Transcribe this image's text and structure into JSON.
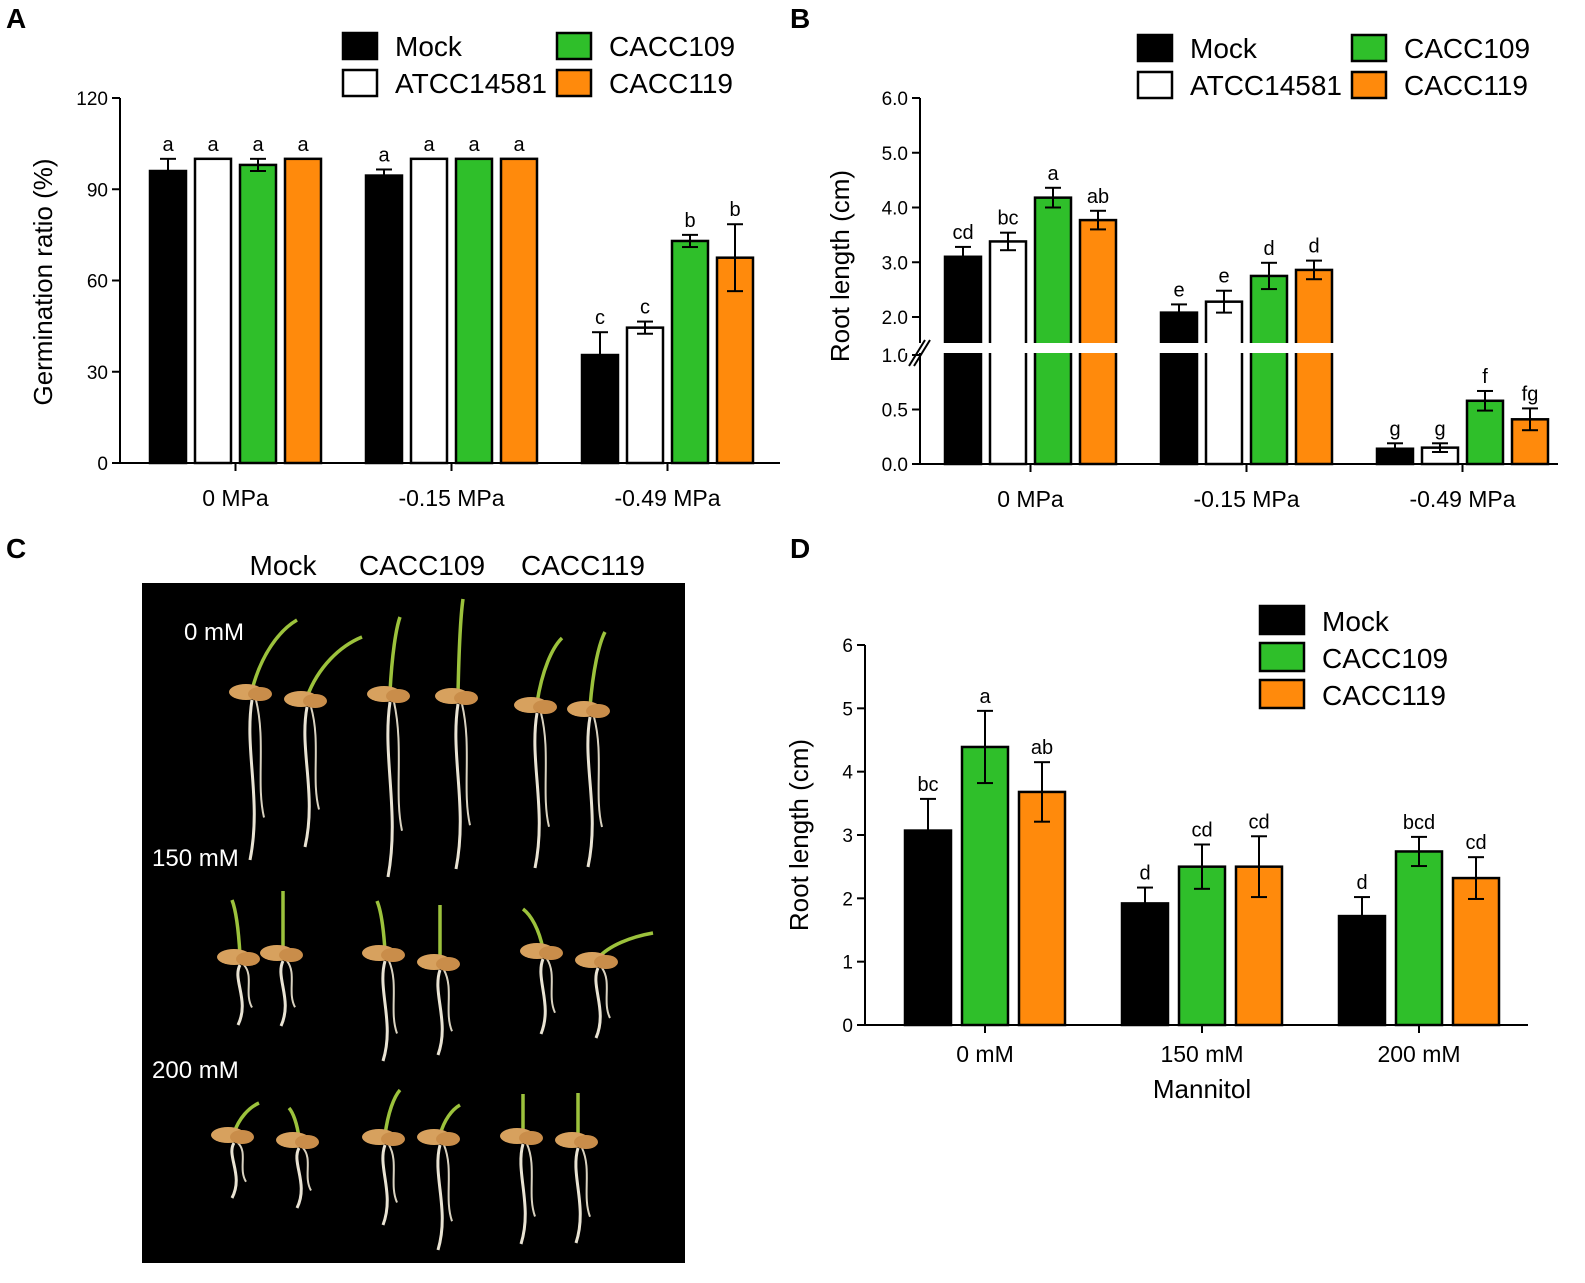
{
  "colors": {
    "mock": "#000000",
    "atcc": "#ffffff",
    "cacc109": "#2fbf2a",
    "cacc119": "#ff8a0c",
    "stroke": "#000000"
  },
  "panels": {
    "a": "A",
    "b": "B",
    "c": "C",
    "d": "D"
  },
  "chart_data": [
    {
      "id": "A",
      "type": "bar",
      "ylabel": "Germination ratio (%)",
      "xlabel": "",
      "ylim": [
        0,
        120
      ],
      "yticks": [
        "0",
        "30",
        "60",
        "90",
        "120"
      ],
      "categories": [
        "0 MPa",
        "-0.15 MPa",
        "-0.49 MPa"
      ],
      "legend": [
        "Mock",
        "ATCC14581",
        "CACC109",
        "CACC119"
      ],
      "series": [
        {
          "name": "Mock",
          "color": "#000000",
          "values": [
            96,
            94.5,
            35.5
          ],
          "err": [
            4,
            2,
            7.5
          ],
          "sig": [
            "a",
            "a",
            "c"
          ]
        },
        {
          "name": "ATCC14581",
          "color": "#ffffff",
          "values": [
            100,
            100,
            44.5
          ],
          "err": [
            0,
            0,
            2
          ],
          "sig": [
            "a",
            "a",
            "c"
          ]
        },
        {
          "name": "CACC109",
          "color": "#2fbf2a",
          "values": [
            98,
            100,
            73
          ],
          "err": [
            2,
            0,
            2
          ],
          "sig": [
            "a",
            "a",
            "b"
          ]
        },
        {
          "name": "CACC119",
          "color": "#ff8a0c",
          "values": [
            100,
            100,
            67.5
          ],
          "err": [
            0,
            0,
            11
          ],
          "sig": [
            "a",
            "a",
            "b"
          ]
        }
      ]
    },
    {
      "id": "B",
      "type": "bar",
      "ylabel": "Root length (cm)",
      "xlabel": "",
      "ylim": [
        0,
        6
      ],
      "axis_break": [
        1.0,
        2.0
      ],
      "yticks": [
        "0.0",
        "0.5",
        "1.0",
        "2.0",
        "3.0",
        "4.0",
        "5.0",
        "6.0"
      ],
      "categories": [
        "0 MPa",
        "-0.15 MPa",
        "-0.49 MPa"
      ],
      "legend": [
        "Mock",
        "ATCC14581",
        "CACC109",
        "CACC119"
      ],
      "series": [
        {
          "name": "Mock",
          "color": "#000000",
          "values": [
            3.1,
            2.08,
            0.14
          ],
          "err": [
            0.18,
            0.15,
            0.05
          ],
          "sig": [
            "cd",
            "e",
            "g"
          ]
        },
        {
          "name": "ATCC14581",
          "color": "#ffffff",
          "values": [
            3.38,
            2.28,
            0.15
          ],
          "err": [
            0.16,
            0.2,
            0.04
          ],
          "sig": [
            "bc",
            "e",
            "g"
          ]
        },
        {
          "name": "CACC109",
          "color": "#2fbf2a",
          "values": [
            4.18,
            2.75,
            0.58
          ],
          "err": [
            0.18,
            0.24,
            0.09
          ],
          "sig": [
            "a",
            "d",
            "f"
          ]
        },
        {
          "name": "CACC119",
          "color": "#ff8a0c",
          "values": [
            3.77,
            2.86,
            0.41
          ],
          "err": [
            0.17,
            0.17,
            0.1
          ],
          "sig": [
            "ab",
            "d",
            "fg"
          ]
        }
      ]
    },
    {
      "id": "D",
      "type": "bar",
      "ylabel": "Root length (cm)",
      "xlabel": "Mannitol",
      "ylim": [
        0,
        6
      ],
      "yticks": [
        "0",
        "1",
        "2",
        "3",
        "4",
        "5",
        "6"
      ],
      "categories": [
        "0 mM",
        "150 mM",
        "200 mM"
      ],
      "legend": [
        "Mock",
        "CACC109",
        "CACC119"
      ],
      "series": [
        {
          "name": "Mock",
          "color": "#000000",
          "values": [
            3.07,
            1.92,
            1.72
          ],
          "err": [
            0.5,
            0.25,
            0.3
          ],
          "sig": [
            "bc",
            "d",
            "d"
          ]
        },
        {
          "name": "CACC109",
          "color": "#2fbf2a",
          "values": [
            4.39,
            2.5,
            2.74
          ],
          "err": [
            0.57,
            0.35,
            0.23
          ],
          "sig": [
            "a",
            "cd",
            "bcd"
          ]
        },
        {
          "name": "CACC119",
          "color": "#ff8a0c",
          "values": [
            3.68,
            2.5,
            2.32
          ],
          "err": [
            0.47,
            0.48,
            0.33
          ],
          "sig": [
            "ab",
            "cd",
            "cd"
          ]
        }
      ]
    }
  ],
  "photo": {
    "columns": [
      "Mock",
      "CACC109",
      "CACC119"
    ],
    "rows": [
      "0 mM",
      "150 mM",
      "200 mM"
    ]
  }
}
